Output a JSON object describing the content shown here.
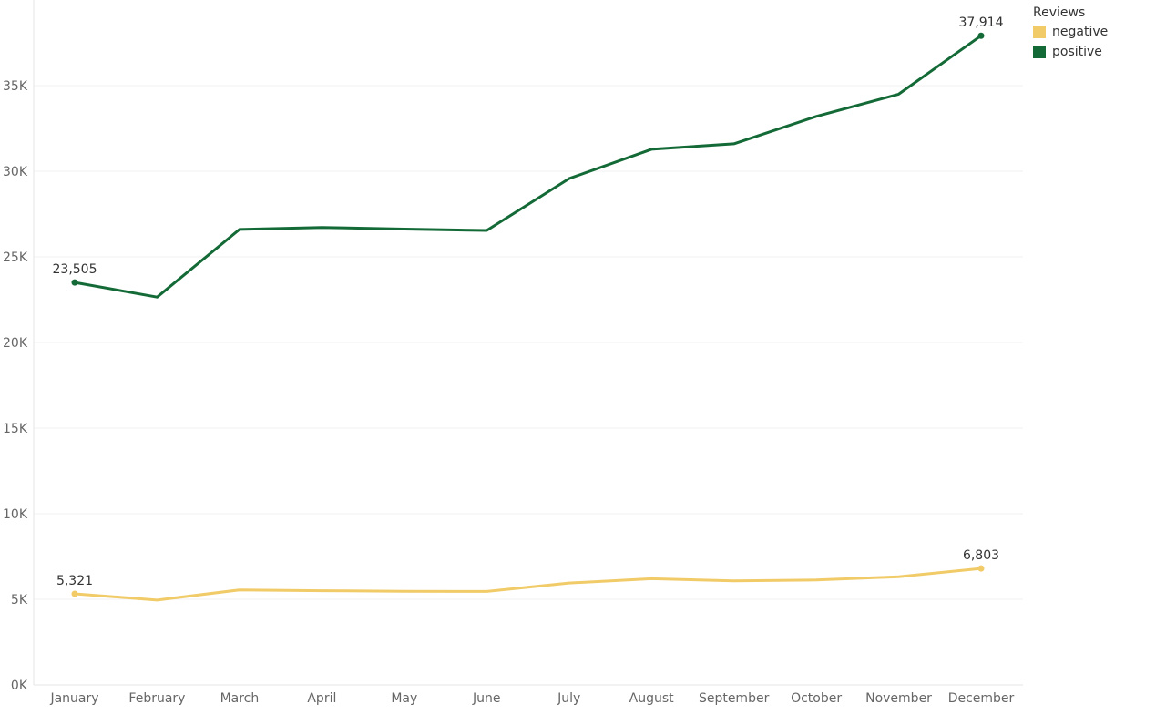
{
  "chart_data": {
    "type": "line",
    "categories": [
      "January",
      "February",
      "March",
      "April",
      "May",
      "June",
      "July",
      "August",
      "September",
      "October",
      "November",
      "December"
    ],
    "series": [
      {
        "name": "negative",
        "color": "#F1CB68",
        "values": [
          5321,
          4950,
          5550,
          5500,
          5470,
          5460,
          5950,
          6200,
          6080,
          6130,
          6320,
          6803
        ]
      },
      {
        "name": "positive",
        "color": "#136A36",
        "values": [
          23505,
          22650,
          26600,
          26720,
          26620,
          26540,
          29570,
          31280,
          31600,
          33200,
          34500,
          37914
        ]
      }
    ],
    "data_labels": [
      {
        "series": 1,
        "index": 0,
        "text": "23,505"
      },
      {
        "series": 1,
        "index": 11,
        "text": "37,914"
      },
      {
        "series": 0,
        "index": 0,
        "text": "5,321"
      },
      {
        "series": 0,
        "index": 11,
        "text": "6,803"
      }
    ],
    "y_ticks": [
      0,
      5000,
      10000,
      15000,
      20000,
      25000,
      30000,
      35000
    ],
    "y_tick_labels": [
      "0K",
      "5K",
      "10K",
      "15K",
      "20K",
      "25K",
      "30K",
      "35K"
    ],
    "ylim": [
      0,
      39600
    ],
    "grid": true,
    "legend": {
      "title": "Reviews",
      "position": "top-right"
    }
  }
}
